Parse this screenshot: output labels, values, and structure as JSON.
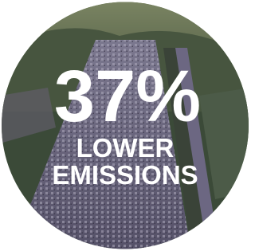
{
  "headline": "37%",
  "caption_lines": [
    "LOWER",
    "EMISSIONS"
  ]
}
